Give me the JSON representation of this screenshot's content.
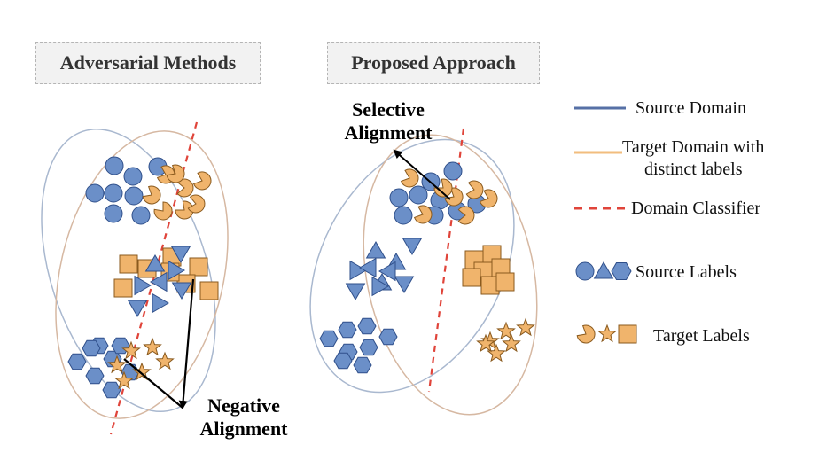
{
  "titles": {
    "left": "Adversarial Methods",
    "right": "Proposed Approach"
  },
  "annotations": {
    "selective_line1": "Selective",
    "selective_line2": "Alignment",
    "negative_line1": "Negative",
    "negative_line2": "Alignment"
  },
  "legend": {
    "source_domain": "Source Domain",
    "target_domain_line1": "Target Domain with",
    "target_domain_line2": "distinct labels",
    "domain_classifier": "Domain Classifier",
    "source_labels": "Source Labels",
    "target_labels": "Target Labels"
  },
  "colors": {
    "source_blue": "#6b8fc8",
    "source_blue_stroke": "#2f4f8a",
    "source_domain_line": "#5670a6",
    "target_orange": "#f0b46c",
    "target_orange_stroke": "#8a5a1e",
    "target_domain_line": "#f2bd7e",
    "classifier_red": "#e0443a",
    "source_ellipse": "#a9b8cf",
    "target_ellipse": "#d6b8a2"
  },
  "icons": {
    "source_shapes": [
      "circle-icon",
      "triangle-icon",
      "hexagon-icon"
    ],
    "target_shapes": [
      "pacman-icon",
      "star-icon",
      "square-icon"
    ]
  }
}
